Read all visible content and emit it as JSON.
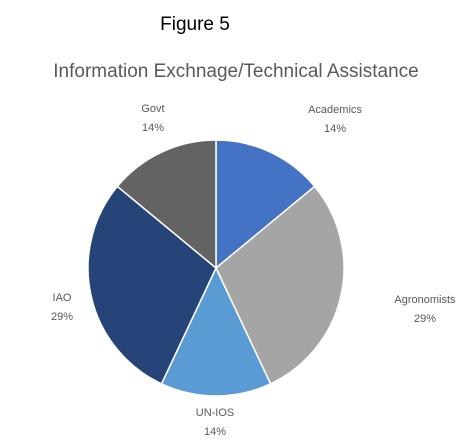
{
  "caption": "Figure 5",
  "chart_data": {
    "type": "pie",
    "title": "Information Exchnage/Technical Assistance",
    "categories": [
      "Academics",
      "Agronomists",
      "UN-IOS",
      "IAO",
      "Govt"
    ],
    "values": [
      14,
      29,
      14,
      29,
      14
    ],
    "value_labels": [
      "14%",
      "29%",
      "14%",
      "29%",
      "14%"
    ],
    "colors": [
      "#4472c4",
      "#a5a5a5",
      "#5b9bd5",
      "#264478",
      "#636363"
    ]
  }
}
